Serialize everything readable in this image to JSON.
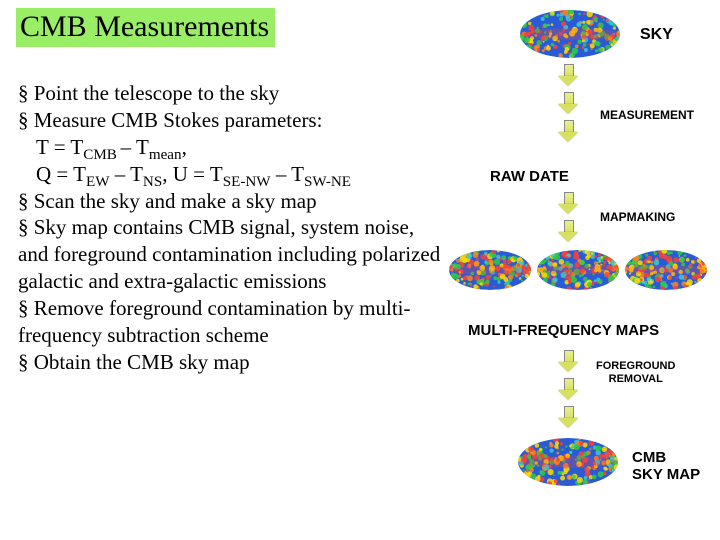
{
  "title": "CMB Measurements",
  "bullets": {
    "b1": "Point the telescope to the sky",
    "b2": "Measure CMB Stokes parameters:",
    "b2_l1a": "T = T",
    "b2_l1_s1": "CMB ",
    "b2_l1b": "– T",
    "b2_l1_s2": "mean",
    "b2_l1c": ",",
    "b2_l2a": "Q = T",
    "b2_l2_s1": "EW",
    "b2_l2b": " – T",
    "b2_l2_s2": "NS",
    "b2_l2c": ", U = T",
    "b2_l2_s3": "SE-NW",
    "b2_l2d": " – T",
    "b2_l2_s4": "SW-NE",
    "b3": "Scan the sky and make a sky map",
    "b4": "Sky map contains CMB signal, system noise, and foreground contamination including polarized galactic and extra-galactic emissions",
    "b5": "Remove foreground contamination by multi-frequency subtraction scheme",
    "b6": "Obtain the CMB sky map"
  },
  "diagram": {
    "sky": "SKY",
    "measurement": "MEASUREMENT",
    "raw_date": "RAW DATE",
    "mapmaking": "MAPMAKING",
    "multi_freq": "MULTI-FREQUENCY MAPS",
    "foreground": "FOREGROUND REMOVAL",
    "foreground_l1": "FOREGROUND",
    "foreground_l2": "REMOVAL",
    "cmb_map_l1": "CMB",
    "cmb_map_l2": "SKY MAP"
  },
  "style": {
    "title_bg": "#99ee66",
    "label_sizes": {
      "sky": 16,
      "proc": 12,
      "stage": 15,
      "final": 15
    },
    "map_colors": {
      "base": "#2a5bd7",
      "g": "#2ecc40",
      "y": "#ffdc00",
      "o": "#ff851b",
      "r": "#ff4136",
      "c": "#39cccc"
    }
  }
}
